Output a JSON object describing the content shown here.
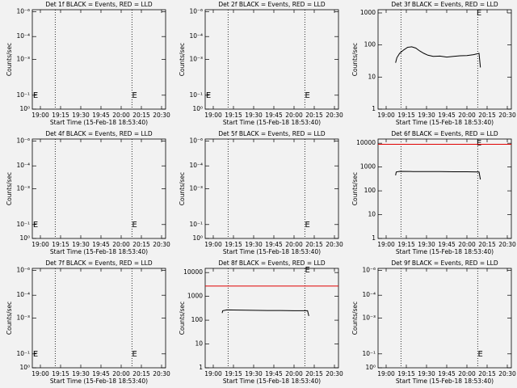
{
  "chart_data": [
    {
      "type": "line",
      "title": "Det 1f BLACK = Events, RED = LLD",
      "xlabel": "Start Time (15-Feb-18 18:53:40)",
      "ylabel": "Counts/sec",
      "xlim": [
        54,
        153
      ],
      "xticks": [
        {
          "value": 60,
          "label": "19:00"
        },
        {
          "value": 75,
          "label": "19:15"
        },
        {
          "value": 90,
          "label": "19:30"
        },
        {
          "value": 105,
          "label": "19:45"
        },
        {
          "value": 120,
          "label": "20:00"
        },
        {
          "value": 135,
          "label": "20:15"
        },
        {
          "value": 150,
          "label": "20:30"
        }
      ],
      "ylim": [
        0,
        1
      ],
      "yticks": [
        {
          "value": 0,
          "label": "10⁰"
        },
        {
          "value": 0.14,
          "label": "10⁻¹"
        },
        {
          "value": 0.5,
          "label": "10⁻³"
        },
        {
          "value": 0.73,
          "label": "10⁻⁴"
        },
        {
          "value": 0.98,
          "label": "10⁻⁶"
        }
      ],
      "log_y": false,
      "vlines": [
        71,
        128
      ],
      "annotations": [
        {
          "text": "E",
          "x": 56.4,
          "y": 0.14
        },
        {
          "text": "E",
          "x": 130,
          "y": 0.14
        }
      ],
      "series": []
    },
    {
      "type": "line",
      "title": "Det 2f BLACK = Events, RED = LLD",
      "xlabel": "Start Time (15-Feb-18 18:53:40)",
      "ylabel": "Counts/sec",
      "xlim": [
        54,
        153
      ],
      "xticks": [
        {
          "value": 60,
          "label": "19:00"
        },
        {
          "value": 75,
          "label": "19:15"
        },
        {
          "value": 90,
          "label": "19:30"
        },
        {
          "value": 105,
          "label": "19:45"
        },
        {
          "value": 120,
          "label": "20:00"
        },
        {
          "value": 135,
          "label": "20:15"
        },
        {
          "value": 150,
          "label": "20:30"
        }
      ],
      "ylim": [
        0,
        1
      ],
      "yticks": [
        {
          "value": 0,
          "label": "10⁰"
        },
        {
          "value": 0.14,
          "label": "10⁻¹"
        },
        {
          "value": 0.5,
          "label": "10⁻³"
        },
        {
          "value": 0.73,
          "label": "10⁻⁴"
        },
        {
          "value": 0.98,
          "label": "10⁻⁶"
        }
      ],
      "log_y": false,
      "vlines": [
        71,
        128
      ],
      "annotations": [
        {
          "text": "E",
          "x": 56.4,
          "y": 0.14
        },
        {
          "text": "E",
          "x": 130,
          "y": 0.14
        }
      ],
      "series": []
    },
    {
      "type": "line",
      "title": "Det 3f BLACK = Events, RED = LLD",
      "xlabel": "Start Time (15-Feb-18 18:53:40)",
      "ylabel": "Counts/sec",
      "xlim": [
        54,
        153
      ],
      "xticks": [
        {
          "value": 60,
          "label": "19:00"
        },
        {
          "value": 75,
          "label": "19:15"
        },
        {
          "value": 90,
          "label": "19:30"
        },
        {
          "value": 105,
          "label": "19:45"
        },
        {
          "value": 120,
          "label": "20:00"
        },
        {
          "value": 135,
          "label": "20:15"
        },
        {
          "value": 150,
          "label": "20:30"
        }
      ],
      "ylim": [
        1,
        1260
      ],
      "yticks": [
        1,
        10,
        100,
        1000
      ],
      "log_y": true,
      "vlines": [
        71,
        128
      ],
      "annotations": [
        {
          "text": "E",
          "x": 129,
          "y": 1000
        }
      ],
      "series": [
        {
          "color": "#000000",
          "x": [
            67,
            68,
            70,
            73,
            76,
            79,
            82,
            85,
            88,
            91,
            95,
            100,
            105,
            110,
            115,
            120,
            125,
            129,
            130
          ],
          "values": [
            28,
            40,
            55,
            70,
            85,
            88,
            80,
            65,
            55,
            48,
            44,
            45,
            42,
            44,
            46,
            47,
            50,
            55,
            20
          ]
        }
      ]
    },
    {
      "type": "line",
      "title": "Det 4f BLACK = Events, RED = LLD",
      "xlabel": "Start Time (15-Feb-18 18:53:40)",
      "ylabel": "Counts/sec",
      "xlim": [
        54,
        153
      ],
      "xticks": [
        {
          "value": 60,
          "label": "19:00"
        },
        {
          "value": 75,
          "label": "19:15"
        },
        {
          "value": 90,
          "label": "19:30"
        },
        {
          "value": 105,
          "label": "19:45"
        },
        {
          "value": 120,
          "label": "20:00"
        },
        {
          "value": 135,
          "label": "20:15"
        },
        {
          "value": 150,
          "label": "20:30"
        }
      ],
      "ylim": [
        0,
        1
      ],
      "yticks": [
        {
          "value": 0,
          "label": "10⁰"
        },
        {
          "value": 0.14,
          "label": "10⁻¹"
        },
        {
          "value": 0.5,
          "label": "10⁻³"
        },
        {
          "value": 0.73,
          "label": "10⁻⁴"
        },
        {
          "value": 0.98,
          "label": "10⁻⁶"
        }
      ],
      "log_y": false,
      "vlines": [
        71,
        128
      ],
      "annotations": [
        {
          "text": "E",
          "x": 56.4,
          "y": 0.14
        },
        {
          "text": "E",
          "x": 130,
          "y": 0.14
        }
      ],
      "series": []
    },
    {
      "type": "line",
      "title": "Det 5f BLACK = Events, RED = LLD",
      "xlabel": "Start Time (15-Feb-18 18:53:40)",
      "ylabel": "Counts/sec",
      "xlim": [
        54,
        153
      ],
      "xticks": [
        {
          "value": 60,
          "label": "19:00"
        },
        {
          "value": 75,
          "label": "19:15"
        },
        {
          "value": 90,
          "label": "19:30"
        },
        {
          "value": 105,
          "label": "19:45"
        },
        {
          "value": 120,
          "label": "20:00"
        },
        {
          "value": 135,
          "label": "20:15"
        },
        {
          "value": 150,
          "label": "20:30"
        }
      ],
      "ylim": [
        0,
        1
      ],
      "yticks": [
        {
          "value": 0,
          "label": "10⁰"
        },
        {
          "value": 0.14,
          "label": "10⁻¹"
        },
        {
          "value": 0.5,
          "label": "10⁻³"
        },
        {
          "value": 0.73,
          "label": "10⁻⁴"
        },
        {
          "value": 0.98,
          "label": "10⁻⁶"
        }
      ],
      "log_y": false,
      "vlines": [
        71,
        128
      ],
      "annotations": [
        {
          "text": "E",
          "x": 130,
          "y": 0.14
        }
      ],
      "series": []
    },
    {
      "type": "line",
      "title": "Det 6f BLACK = Events, RED = LLD",
      "xlabel": "Start Time (15-Feb-18 18:53:40)",
      "ylabel": "Counts/sec",
      "xlim": [
        54,
        153
      ],
      "xticks": [
        {
          "value": 60,
          "label": "19:00"
        },
        {
          "value": 75,
          "label": "19:15"
        },
        {
          "value": 90,
          "label": "19:30"
        },
        {
          "value": 105,
          "label": "19:45"
        },
        {
          "value": 120,
          "label": "20:00"
        },
        {
          "value": 135,
          "label": "20:15"
        },
        {
          "value": 150,
          "label": "20:30"
        }
      ],
      "ylim": [
        1,
        15000
      ],
      "yticks": [
        1,
        10,
        100,
        1000,
        10000
      ],
      "log_y": true,
      "vlines": [
        71,
        128
      ],
      "annotations": [
        {
          "text": "E",
          "x": 129,
          "y": 10000
        }
      ],
      "series": [
        {
          "color": "#e00000",
          "x": [
            54,
            153
          ],
          "values": [
            9000,
            9000
          ]
        },
        {
          "color": "#000000",
          "x": [
            67,
            67.5,
            70,
            80,
            90,
            100,
            110,
            120,
            129,
            130
          ],
          "values": [
            450,
            620,
            660,
            650,
            640,
            640,
            630,
            630,
            620,
            300
          ]
        }
      ]
    },
    {
      "type": "line",
      "title": "Det 7f BLACK = Events, RED = LLD",
      "xlabel": "Start Time (15-Feb-18 18:53:40)",
      "ylabel": "Counts/sec",
      "xlim": [
        54,
        153
      ],
      "xticks": [
        {
          "value": 60,
          "label": "19:00"
        },
        {
          "value": 75,
          "label": "19:15"
        },
        {
          "value": 90,
          "label": "19:30"
        },
        {
          "value": 105,
          "label": "19:45"
        },
        {
          "value": 120,
          "label": "20:00"
        },
        {
          "value": 135,
          "label": "20:15"
        },
        {
          "value": 150,
          "label": "20:30"
        }
      ],
      "ylim": [
        0,
        1
      ],
      "yticks": [
        {
          "value": 0,
          "label": "10⁰"
        },
        {
          "value": 0.14,
          "label": "10⁻¹"
        },
        {
          "value": 0.5,
          "label": "10⁻³"
        },
        {
          "value": 0.73,
          "label": "10⁻⁴"
        },
        {
          "value": 0.98,
          "label": "10⁻⁶"
        }
      ],
      "log_y": false,
      "vlines": [
        71,
        128
      ],
      "annotations": [
        {
          "text": "E",
          "x": 56.4,
          "y": 0.14
        },
        {
          "text": "E",
          "x": 130,
          "y": 0.14
        }
      ],
      "series": []
    },
    {
      "type": "line",
      "title": "Det 8f BLACK = Events, RED = LLD",
      "xlabel": "Start Time (15-Feb-18 18:53:40)",
      "ylabel": "Counts/sec",
      "xlim": [
        54,
        153
      ],
      "xticks": [
        {
          "value": 60,
          "label": "19:00"
        },
        {
          "value": 75,
          "label": "19:15"
        },
        {
          "value": 90,
          "label": "19:30"
        },
        {
          "value": 105,
          "label": "19:45"
        },
        {
          "value": 120,
          "label": "20:00"
        },
        {
          "value": 135,
          "label": "20:15"
        },
        {
          "value": 150,
          "label": "20:30"
        }
      ],
      "ylim": [
        1,
        15000
      ],
      "yticks": [
        1,
        10,
        100,
        1000,
        10000
      ],
      "log_y": true,
      "vlines": [
        71,
        128
      ],
      "annotations": [
        {
          "text": "E",
          "x": 130,
          "y": 13000
        }
      ],
      "series": [
        {
          "color": "#e00000",
          "x": [
            54,
            153
          ],
          "values": [
            2700,
            2700
          ]
        },
        {
          "color": "#000000",
          "x": [
            66.6,
            67,
            70,
            80,
            90,
            100,
            110,
            120,
            130,
            131
          ],
          "values": [
            200,
            250,
            270,
            265,
            260,
            255,
            255,
            250,
            250,
            150
          ]
        }
      ]
    },
    {
      "type": "line",
      "title": "Det 9f BLACK = Events, RED = LLD",
      "xlabel": "Start Time (15-Feb-18 18:53:40)",
      "ylabel": "Counts/sec",
      "xlim": [
        54,
        153
      ],
      "xticks": [
        {
          "value": 60,
          "label": "19:00"
        },
        {
          "value": 75,
          "label": "19:15"
        },
        {
          "value": 90,
          "label": "19:30"
        },
        {
          "value": 105,
          "label": "19:45"
        },
        {
          "value": 120,
          "label": "20:00"
        },
        {
          "value": 135,
          "label": "20:15"
        },
        {
          "value": 150,
          "label": "20:30"
        }
      ],
      "ylim": [
        0,
        1
      ],
      "yticks": [
        {
          "value": 0,
          "label": "10⁰"
        },
        {
          "value": 0.14,
          "label": "10⁻¹"
        },
        {
          "value": 0.5,
          "label": "10⁻³"
        },
        {
          "value": 0.73,
          "label": "10⁻⁴"
        },
        {
          "value": 0.98,
          "label": "10⁻⁶"
        }
      ],
      "log_y": false,
      "vlines": [
        71,
        128
      ],
      "annotations": [
        {
          "text": "E",
          "x": 130,
          "y": 0.14
        }
      ],
      "series": []
    }
  ]
}
